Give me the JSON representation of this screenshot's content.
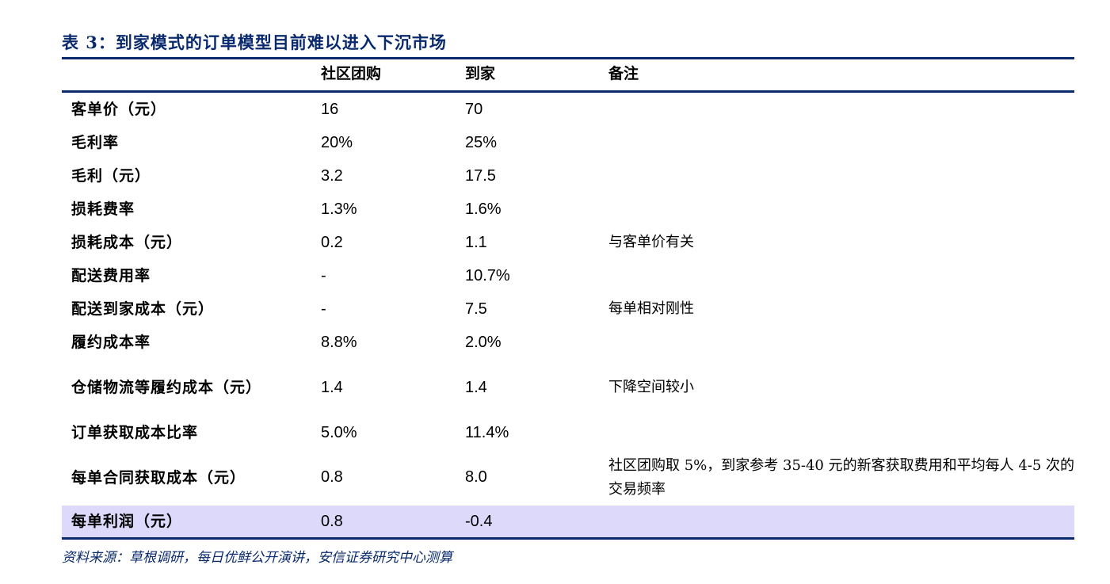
{
  "title": "表 3：到家模式的订单模型目前难以进入下沉市场",
  "header": {
    "col1": "社区团购",
    "col2": "到家",
    "col3": "备注"
  },
  "rows": [
    {
      "label": "客单价（元）",
      "v1": "16",
      "v2": "70",
      "note": ""
    },
    {
      "label": "毛利率",
      "v1": "20%",
      "v2": "25%",
      "note": ""
    },
    {
      "label": "毛利（元）",
      "v1": "3.2",
      "v2": "17.5",
      "note": ""
    },
    {
      "label": "损耗费率",
      "v1": "1.3%",
      "v2": "1.6%",
      "note": ""
    },
    {
      "label": "损耗成本（元）",
      "v1": "0.2",
      "v2": "1.1",
      "note": "与客单价有关"
    },
    {
      "label": "配送费用率",
      "v1": "-",
      "v2": "10.7%",
      "note": ""
    },
    {
      "label": "配送到家成本（元）",
      "v1": "-",
      "v2": "7.5",
      "note": "每单相对刚性"
    },
    {
      "label": "履约成本率",
      "v1": "8.8%",
      "v2": "2.0%",
      "note": ""
    },
    {
      "label": "仓储物流等履约成本（元）",
      "v1": "1.4",
      "v2": "1.4",
      "note": "下降空间较小"
    },
    {
      "label": "订单获取成本比率",
      "v1": "5.0%",
      "v2": "11.4%",
      "note": ""
    },
    {
      "label": "每单合同获取成本（元）",
      "v1": "0.8",
      "v2": "8.0",
      "note": "社区团购取 5%，到家参考 35-40 元的新客获取费用和平均每人 4-5 次的交易频率"
    },
    {
      "label": "每单利润（元）",
      "v1": "0.8",
      "v2": "-0.4",
      "note": ""
    }
  ],
  "source": "资料来源：草根调研，每日优鲜公开演讲，安信证券研究中心测算"
}
